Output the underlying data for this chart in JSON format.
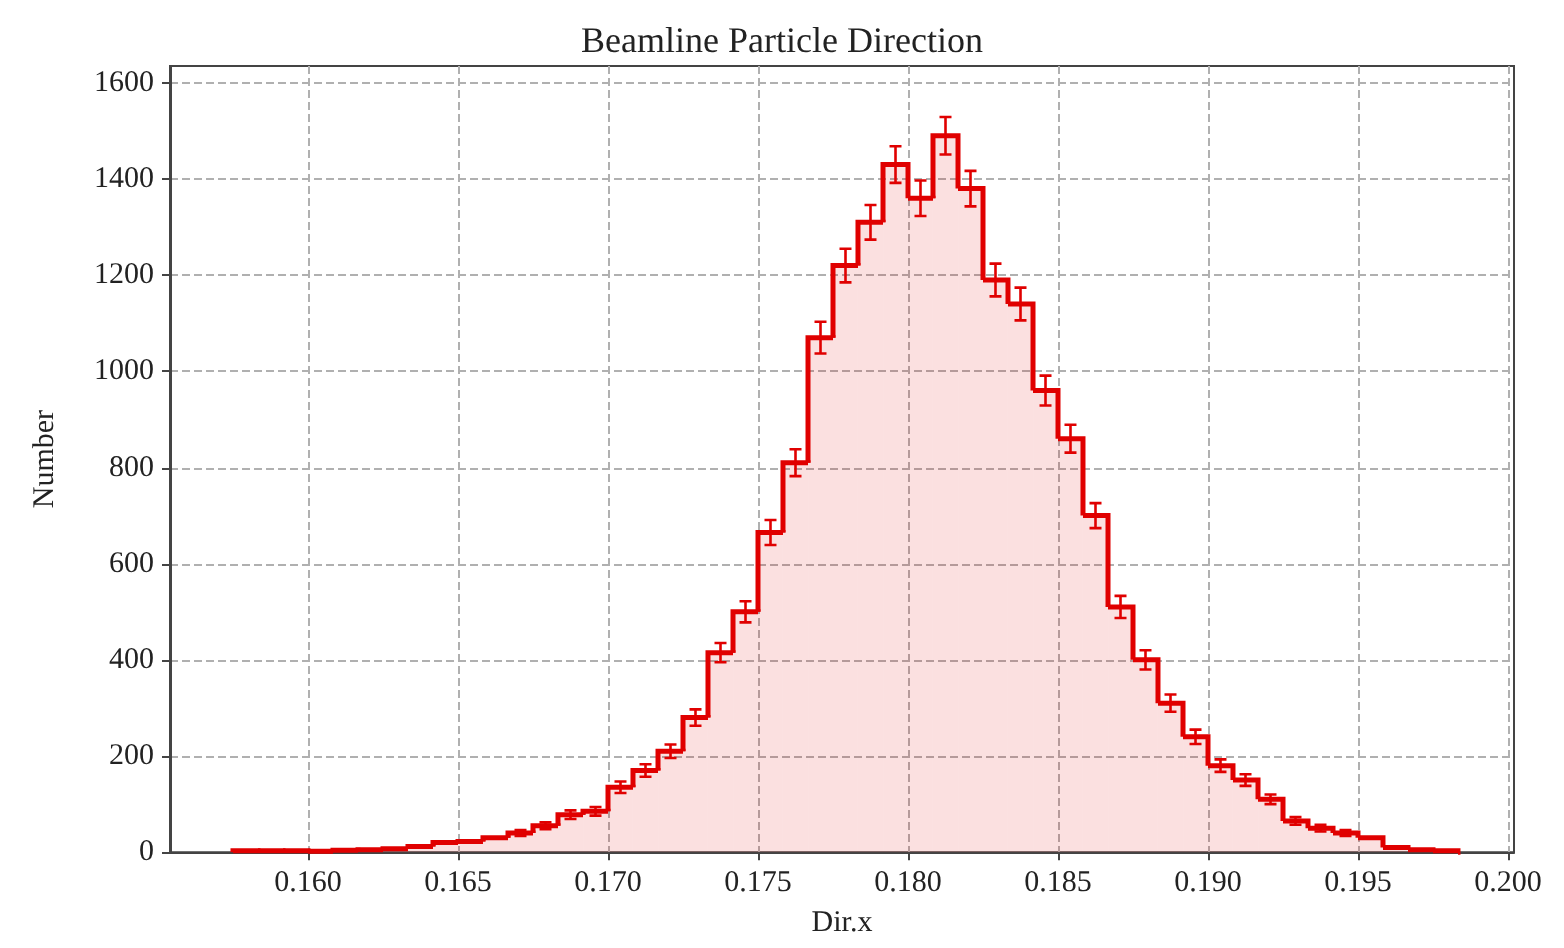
{
  "chart_data": {
    "type": "histogram",
    "title": "Beamline Particle Direction",
    "xlabel": "Dir.x",
    "ylabel": "Number",
    "bins": [
      0.1575,
      0.158333,
      0.159167,
      0.16,
      0.160833,
      0.161667,
      0.1625,
      0.163333,
      0.164167,
      0.165,
      0.165833,
      0.166667,
      0.1675,
      0.168333,
      0.169167,
      0.17,
      0.170833,
      0.171667,
      0.1725,
      0.173333,
      0.174167,
      0.175,
      0.175833,
      0.176667,
      0.1775,
      0.178333,
      0.179167,
      0.18,
      0.180833,
      0.181667,
      0.1825,
      0.183333,
      0.184167,
      0.185,
      0.185833,
      0.186667,
      0.1875,
      0.188333,
      0.189167,
      0.19,
      0.190833,
      0.191667,
      0.1925,
      0.193333,
      0.194167,
      0.195,
      0.195833,
      0.196667,
      0.1975,
      0.198333
    ],
    "values": [
      3,
      3,
      3,
      2,
      4,
      5,
      7,
      12,
      20,
      22,
      30,
      40,
      55,
      78,
      85,
      135,
      170,
      210,
      280,
      415,
      500,
      665,
      810,
      1070,
      1220,
      1310,
      1430,
      1360,
      1490,
      1380,
      1190,
      1140,
      960,
      860,
      700,
      510,
      400,
      310,
      240,
      180,
      150,
      110,
      65,
      50,
      40,
      30,
      10,
      5,
      3
    ],
    "errors": [
      null,
      null,
      null,
      null,
      null,
      null,
      null,
      null,
      null,
      null,
      null,
      6,
      7,
      9,
      9,
      12,
      13,
      14,
      17,
      20,
      22,
      26,
      28,
      33,
      35,
      36,
      38,
      37,
      39,
      37,
      34,
      34,
      31,
      29,
      26,
      23,
      20,
      18,
      15,
      13,
      12,
      10,
      8,
      7,
      6,
      null,
      null,
      null,
      null
    ],
    "color": "#e00000",
    "grid": true,
    "xlim": [
      0.1554,
      0.2002
    ],
    "xticks": [
      {
        "value": 0.16,
        "label": "0.160"
      },
      {
        "value": 0.165,
        "label": "0.165"
      },
      {
        "value": 0.17,
        "label": "0.170"
      },
      {
        "value": 0.175,
        "label": "0.175"
      },
      {
        "value": 0.18,
        "label": "0.180"
      },
      {
        "value": 0.185,
        "label": "0.185"
      },
      {
        "value": 0.19,
        "label": "0.190"
      },
      {
        "value": 0.195,
        "label": "0.195"
      },
      {
        "value": 0.2,
        "label": "0.200"
      }
    ],
    "ylim": [
      0,
      1635
    ],
    "yticks": [
      0,
      200,
      400,
      600,
      800,
      1000,
      1200,
      1400,
      1600
    ]
  }
}
